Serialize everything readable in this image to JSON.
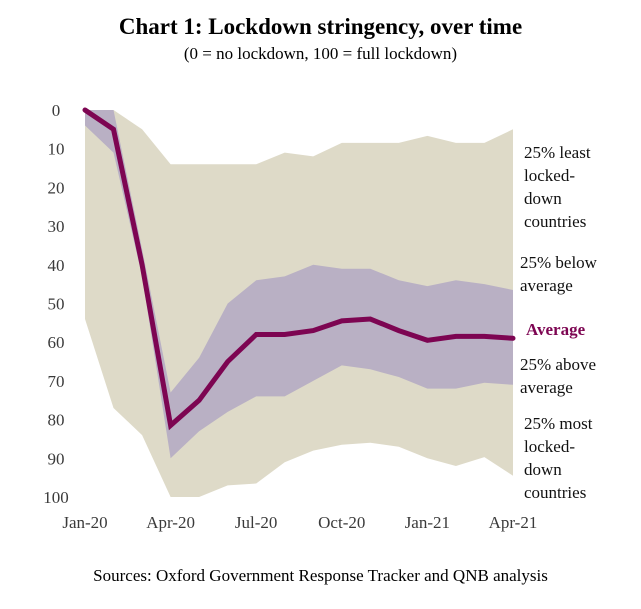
{
  "chart_data": {
    "type": "area",
    "title": "Chart 1: Lockdown stringency, over time",
    "subtitle": "(0 = no lockdown, 100 = full lockdown)",
    "source": "Sources: Oxford Government Response Tracker and QNB analysis",
    "xlabel": "",
    "ylabel": "",
    "ylim": [
      0,
      100
    ],
    "y_inverted": true,
    "yticks": [
      0,
      10,
      20,
      30,
      40,
      50,
      60,
      70,
      80,
      90,
      100
    ],
    "x": [
      "Jan-20",
      "Feb-20",
      "Mar-20",
      "Apr-20",
      "May-20",
      "Jun-20",
      "Jul-20",
      "Aug-20",
      "Sep-20",
      "Oct-20",
      "Nov-20",
      "Dec-20",
      "Jan-21",
      "Feb-21",
      "Mar-21",
      "Apr-21"
    ],
    "xtick_labels": [
      "Jan-20",
      "Apr-20",
      "Jul-20",
      "Oct-20",
      "Jan-21",
      "Apr-21"
    ],
    "grid": false,
    "legend_placement": "right",
    "colors": {
      "outer_band": "#dedac8",
      "inner_band": "#b9b0c4",
      "average": "#7d0552"
    },
    "series": [
      {
        "name": "Minimum (top of outer band)",
        "values": [
          0,
          0,
          5,
          14,
          14,
          14,
          14,
          11,
          12,
          8.5,
          8.5,
          8.5,
          6.7,
          8.5,
          8.5,
          5
        ]
      },
      {
        "name": "25th percentile (top of inner band)",
        "values": [
          0,
          0,
          36,
          73,
          64,
          50,
          44,
          43,
          40,
          41,
          41,
          44,
          45.5,
          44,
          45,
          46.5
        ]
      },
      {
        "name": "Average",
        "values": [
          0,
          5,
          40,
          81.5,
          75,
          65,
          58,
          58,
          57,
          54.5,
          54,
          57,
          59.5,
          58.5,
          58.5,
          59
        ]
      },
      {
        "name": "75th percentile (bottom of inner band)",
        "values": [
          4,
          11,
          43,
          90,
          83,
          78,
          74,
          74,
          70,
          66,
          67,
          69,
          72,
          72,
          70.5,
          71
        ]
      },
      {
        "name": "Maximum (bottom of outer band)",
        "values": [
          54,
          77,
          84,
          100,
          100,
          97,
          96.5,
          91,
          88,
          86.5,
          86,
          87,
          90,
          92,
          89.7,
          94.5
        ]
      }
    ],
    "legend": [
      {
        "key": "least",
        "lines": [
          "25% least",
          "locked-",
          "down",
          "countries"
        ],
        "value_anchor": 12
      },
      {
        "key": "below",
        "lines": [
          "25% below",
          "average"
        ],
        "value_anchor": 42
      },
      {
        "key": "avg",
        "lines": [
          "Average"
        ],
        "value_anchor": 57.5
      },
      {
        "key": "above",
        "lines": [
          "25% above",
          "average"
        ],
        "value_anchor": 66
      },
      {
        "key": "most",
        "lines": [
          "25% most",
          "locked-",
          "down",
          "countries"
        ],
        "value_anchor": 77
      }
    ]
  }
}
